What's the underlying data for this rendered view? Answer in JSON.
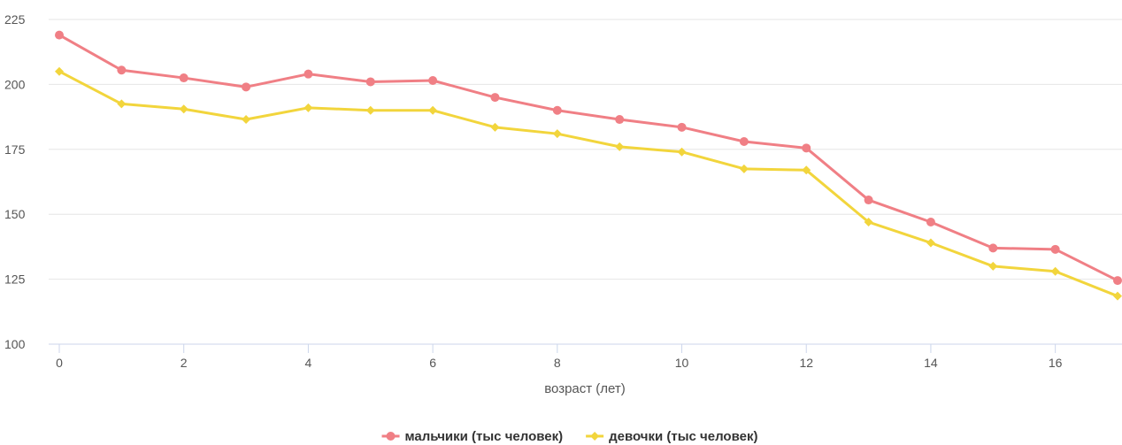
{
  "chart_data": {
    "type": "line",
    "title": "",
    "xlabel": "возраст (лет)",
    "ylabel": "",
    "x": [
      0,
      1,
      2,
      3,
      4,
      5,
      6,
      7,
      8,
      9,
      10,
      11,
      12,
      13,
      14,
      15,
      16,
      17
    ],
    "x_ticks": [
      "0",
      "2",
      "4",
      "6",
      "8",
      "10",
      "12",
      "14",
      "16"
    ],
    "xlim": [
      0,
      17
    ],
    "y_ticks": [
      "100",
      "125",
      "150",
      "175",
      "200",
      "225"
    ],
    "ylim": [
      100,
      225
    ],
    "grid": true,
    "legend_position": "bottom-center",
    "series": [
      {
        "name": "мальчики (тыс человек)",
        "color": "#f07f85",
        "marker": "circle",
        "values": [
          219,
          205.5,
          202.5,
          199,
          204,
          201,
          201.5,
          195,
          190,
          186.5,
          183.5,
          178,
          175.5,
          155.5,
          147,
          137,
          136.5,
          124.5
        ]
      },
      {
        "name": "девочки (тыс человек)",
        "color": "#f2d53c",
        "marker": "diamond",
        "values": [
          205,
          192.5,
          190.5,
          186.5,
          191,
          190,
          190,
          183.5,
          181,
          176,
          174,
          167.5,
          167,
          147,
          139,
          130,
          128,
          118.5
        ]
      }
    ]
  }
}
